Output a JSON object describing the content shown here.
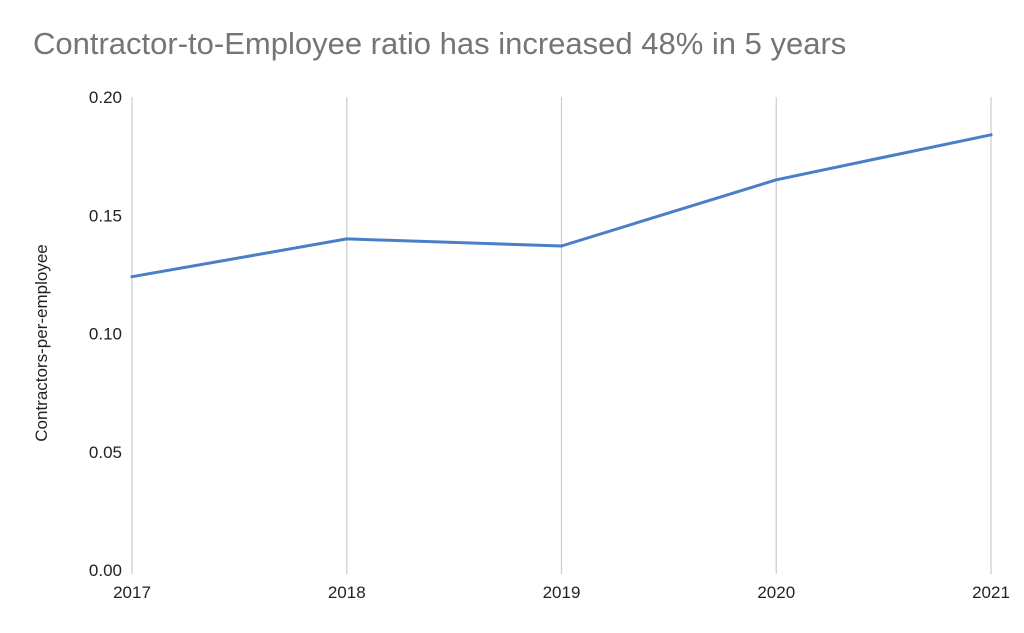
{
  "chart_data": {
    "type": "line",
    "title": "Contractor-to-Employee ratio has increased 48% in 5 years",
    "xlabel": "",
    "ylabel": "Contractors-per-employee",
    "categories": [
      "2017",
      "2018",
      "2019",
      "2020",
      "2021"
    ],
    "series": [
      {
        "values": [
          0.124,
          0.14,
          0.137,
          0.165,
          0.184
        ]
      }
    ],
    "ylim": [
      0,
      0.2
    ],
    "yticks": [
      "0.00",
      "0.05",
      "0.10",
      "0.15",
      "0.20"
    ],
    "grid": "vertical",
    "line_color": "#4a7fc7",
    "grid_color": "#cccccc"
  }
}
